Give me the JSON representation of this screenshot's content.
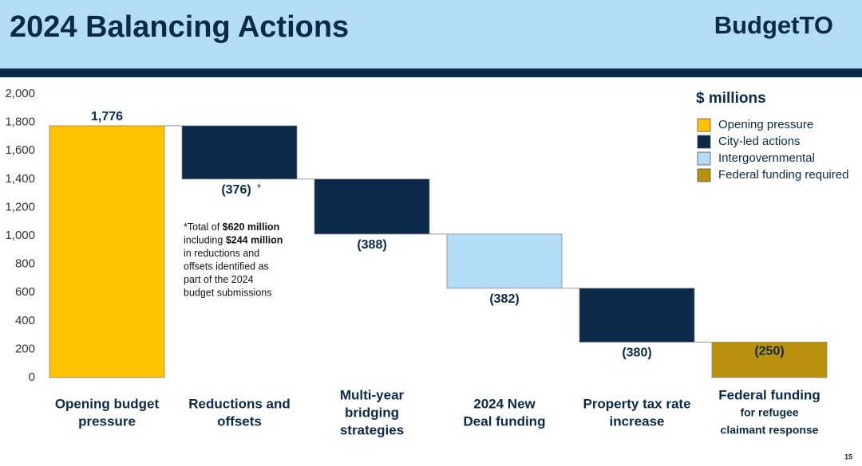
{
  "header": {
    "title": "2024 Balancing Actions",
    "logo": [
      "Budget",
      "TO"
    ]
  },
  "page_number": "15",
  "chart_data": {
    "type": "waterfall",
    "categories": [
      [
        "Opening budget",
        "pressure"
      ],
      [
        "Reductions and",
        "offsets"
      ],
      [
        "Multi-year",
        "bridging",
        "strategies"
      ],
      [
        "2024 New",
        "Deal funding"
      ],
      [
        "Property tax rate",
        "increase"
      ],
      [
        "Federal funding",
        "for refugee",
        "claimant response"
      ]
    ],
    "values": [
      1776,
      -376,
      -388,
      -382,
      -380,
      -250
    ],
    "value_labels": [
      "1,776",
      "(376)",
      "(388)",
      "(382)",
      "(380)",
      "(250)"
    ],
    "colors": [
      "#fdc300",
      "#0b2a4a",
      "#0b2a4a",
      "#b3dcf7",
      "#0b2a4a",
      "#b8900c"
    ],
    "note_marker": "*",
    "footnote": [
      [
        "*Total of ",
        "$620 million"
      ],
      [
        "including ",
        "$244 million"
      ],
      [
        "in reductions and"
      ],
      [
        "offsets identified as"
      ],
      [
        "part of the 2024"
      ],
      [
        "budget submissions"
      ]
    ],
    "legend_title": "$ millions",
    "legend": [
      {
        "name": "Opening pressure",
        "color": "#fdc300"
      },
      {
        "name": "City-led actions",
        "color": "#0b2a4a"
      },
      {
        "name": "Intergovernmental",
        "color": "#b3dcf7"
      },
      {
        "name": "Federal funding required",
        "color": "#b8900c"
      }
    ],
    "ylim": [
      0,
      2000
    ],
    "yticks": [
      0,
      200,
      400,
      600,
      800,
      {
        "value": 1000,
        "label": "1,000"
      },
      {
        "value": 1200,
        "label": "1,200"
      },
      {
        "value": 1400,
        "label": "1,400"
      },
      {
        "value": 1600,
        "label": "1,600"
      },
      {
        "value": 1800,
        "label": "1,800"
      },
      {
        "value": 2000,
        "label": "2,000"
      }
    ],
    "grid": false
  }
}
